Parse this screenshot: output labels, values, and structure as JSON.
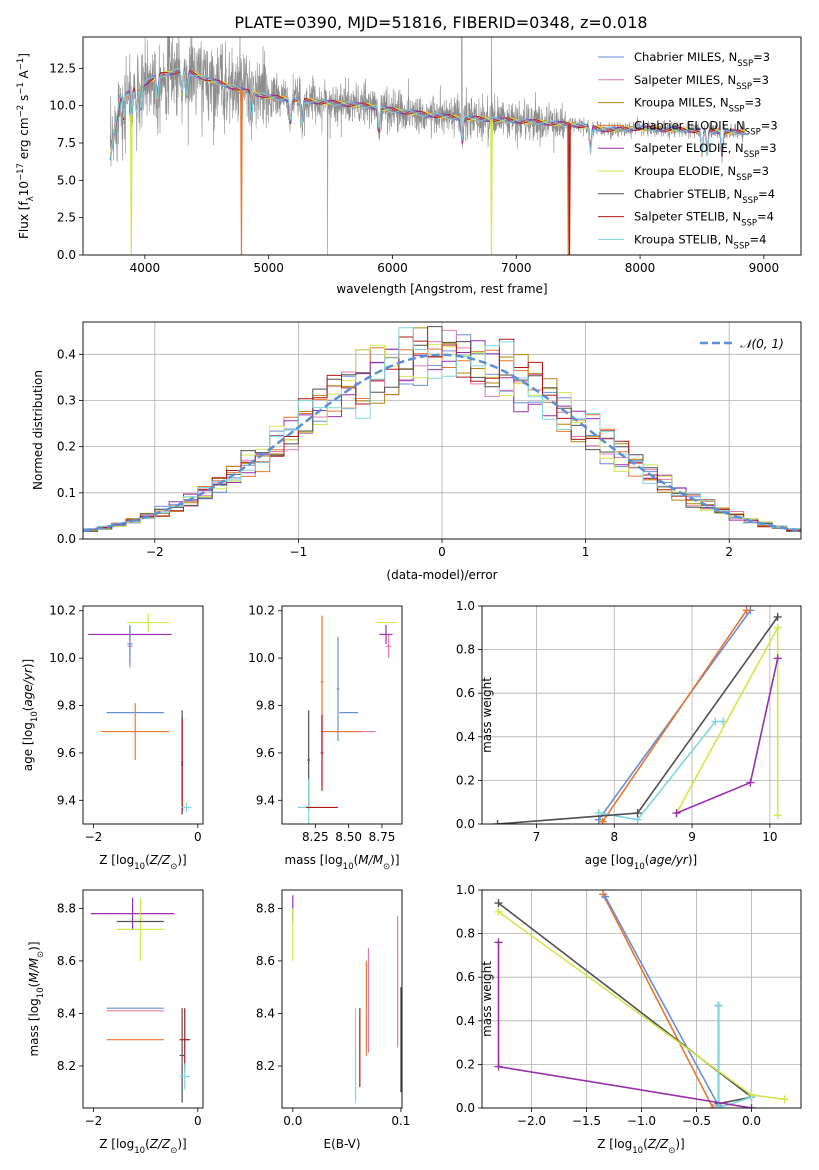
{
  "figure_title": "PLATE=0390, MJD=51816, FIBERID=0348, z=0.018",
  "colors": {
    "Chabrier MILES": "#6a8fd8",
    "Salpeter MILES": "#e27ab2",
    "Kroupa MILES": "#b5860b",
    "Chabrier ELODIE": "#e8772e",
    "Salpeter ELODIE": "#9a2fb0",
    "Kroupa ELODIE": "#cfe84a",
    "Chabrier STELIB": "#505050",
    "Salpeter STELIB": "#b01818",
    "Kroupa STELIB": "#7fd6dc",
    "gaussian": "#5b8fd6",
    "data": "#8c8c8c",
    "grid": "#b0b0b0"
  },
  "chart_data": [
    {
      "id": "spectrum",
      "type": "line",
      "title": "PLATE=0390, MJD=51816, FIBERID=0348, z=0.018",
      "xlabel": "wavelength [Angstrom, rest frame]",
      "ylabel_parts": [
        "Flux [f",
        "λ",
        "10",
        "−17",
        " erg cm",
        "−2",
        " s",
        "−1",
        " A",
        "−1",
        "]"
      ],
      "xlim": [
        3500,
        9300
      ],
      "ylim": [
        0,
        14.6
      ],
      "xticks": [
        4000,
        5000,
        6000,
        7000,
        8000,
        9000
      ],
      "yticks": [
        0.0,
        2.5,
        5.0,
        7.5,
        10.0,
        12.5
      ],
      "ytick_labels": [
        "0.0",
        "2.5",
        "5.0",
        "7.5",
        "10.0",
        "12.5"
      ],
      "legend": {
        "placement": "upper right",
        "entries": [
          {
            "base": "Chabrier MILES, N",
            "sub": "SSP",
            "tail": "=3"
          },
          {
            "base": "Salpeter MILES, N",
            "sub": "SSP",
            "tail": "=3"
          },
          {
            "base": "Kroupa MILES, N",
            "sub": "SSP",
            "tail": "=3"
          },
          {
            "base": "Chabrier ELODIE, N",
            "sub": "SSP",
            "tail": "=3"
          },
          {
            "base": "Salpeter ELODIE, N",
            "sub": "SSP",
            "tail": "=3"
          },
          {
            "base": "Kroupa ELODIE, N",
            "sub": "SSP",
            "tail": "=3"
          },
          {
            "base": "Chabrier STELIB, N",
            "sub": "SSP",
            "tail": "=4"
          },
          {
            "base": "Salpeter STELIB, N",
            "sub": "SSP",
            "tail": "=4"
          },
          {
            "base": "Kroupa STELIB, N",
            "sub": "SSP",
            "tail": "=4"
          }
        ]
      },
      "continuum_x": [
        3720,
        3800,
        3900,
        4000,
        4100,
        4300,
        4500,
        4800,
        5000,
        5200,
        5500,
        5800,
        6000,
        6200,
        6500,
        7000,
        7500,
        7700,
        7800,
        8000,
        8300,
        8600,
        8850
      ],
      "continuum_y": [
        6.5,
        10.5,
        11.0,
        11.5,
        12.0,
        12.4,
        11.8,
        11.0,
        10.6,
        10.4,
        10.2,
        10.0,
        9.7,
        9.5,
        9.2,
        9.0,
        8.7,
        8.4,
        8.4,
        8.5,
        8.4,
        8.3,
        8.2
      ],
      "model_dropouts": [
        {
          "series": "Kroupa ELODIE",
          "x": 3890
        },
        {
          "series": "Chabrier ELODIE",
          "x": 4780
        },
        {
          "series": "Kroupa ELODIE",
          "x": 6800
        },
        {
          "series": "Chabrier ELODIE",
          "x": 7420
        },
        {
          "series": "Salpeter STELIB",
          "x": 7430
        }
      ]
    },
    {
      "id": "residuals",
      "type": "histogram-step",
      "xlabel": "(data-model)/error",
      "ylabel": "Normed distribution",
      "xlim": [
        -2.5,
        2.5
      ],
      "ylim": [
        0,
        0.47
      ],
      "xticks": [
        -2,
        -1,
        0,
        1,
        2
      ],
      "xtick_labels": [
        "−2",
        "−1",
        "0",
        "1",
        "2"
      ],
      "yticks": [
        0.0,
        0.1,
        0.2,
        0.3,
        0.4
      ],
      "ytick_labels": [
        "0.0",
        "0.1",
        "0.2",
        "0.3",
        "0.4"
      ],
      "grid": true,
      "legend": {
        "placement": "upper right",
        "label": "𝒩(0, 1)"
      },
      "bin_width": 0.1,
      "gaussian": {
        "mean": 0,
        "sigma": 1
      }
    },
    {
      "id": "age-vs-Z",
      "type": "errorbar",
      "xlabel": "Z [log10(Z/Z⊙)]",
      "ylabel": "age  [log10(age/yr)]",
      "xlim": [
        -2.2,
        0.1
      ],
      "ylim": [
        9.3,
        10.22
      ],
      "xticks": [
        -2,
        0
      ],
      "xtick_labels": [
        "−2",
        "0"
      ],
      "yticks": [
        9.4,
        9.6,
        9.8,
        10.0,
        10.2
      ],
      "ytick_labels": [
        "9.4",
        "9.6",
        "9.8",
        "10.0",
        "10.2"
      ],
      "points": [
        {
          "series": "Kroupa ELODIE",
          "x": -0.95,
          "xerr": 0.4,
          "y": 10.15,
          "yerr": 0.04
        },
        {
          "series": "Salpeter ELODIE",
          "x": -1.3,
          "xerr": 0.8,
          "y": 10.1,
          "yerr": 0.03
        },
        {
          "series": "Salpeter MILES",
          "x": -1.3,
          "xerr": 0.05,
          "y": 10.05,
          "yerr": 0.09
        },
        {
          "series": "Chabrier MILES",
          "x": -1.3,
          "xerr": 0.05,
          "y": 10.06,
          "yerr": 0.08
        },
        {
          "series": "Chabrier MILES",
          "x": -1.2,
          "xerr": 0.55,
          "y": 9.77,
          "yerr": 0.0
        },
        {
          "series": "Chabrier ELODIE",
          "x": -1.2,
          "xerr": 0.65,
          "y": 9.69,
          "yerr": 0.12
        },
        {
          "series": "Chabrier STELIB",
          "x": -0.3,
          "xerr": 0.02,
          "y": 9.56,
          "yerr": 0.22
        },
        {
          "series": "Salpeter STELIB",
          "x": -0.3,
          "xerr": 0.02,
          "y": 9.55,
          "yerr": 0.2
        },
        {
          "series": "Kroupa STELIB",
          "x": -0.22,
          "xerr": 0.1,
          "y": 9.37,
          "yerr": 0.02
        }
      ]
    },
    {
      "id": "age-vs-mass",
      "type": "errorbar",
      "xlabel": "mass [log10(M/M⊙)]",
      "ylabel": "",
      "xlim": [
        8.0,
        8.9
      ],
      "ylim": [
        9.3,
        10.22
      ],
      "xticks": [
        8.25,
        8.5,
        8.75
      ],
      "xtick_labels": [
        "8.25",
        "8.50",
        "8.75"
      ],
      "yticks": [
        9.4,
        9.6,
        9.8,
        10.0,
        10.2
      ],
      "ytick_labels": [
        "9.4",
        "9.6",
        "9.8",
        "10.0",
        "10.2"
      ],
      "points": [
        {
          "series": "Kroupa ELODIE",
          "x": 8.78,
          "xerr": 0.08,
          "y": 10.15,
          "yerr": 0.0
        },
        {
          "series": "Salpeter ELODIE",
          "x": 8.78,
          "xerr": 0.05,
          "y": 10.1,
          "yerr": 0.04
        },
        {
          "series": "Salpeter MILES",
          "x": 8.8,
          "xerr": 0.02,
          "y": 10.05,
          "yerr": 0.05
        },
        {
          "series": "Chabrier ELODIE",
          "x": 8.3,
          "xerr": 0.01,
          "y": 9.9,
          "yerr": 0.28
        },
        {
          "series": "Chabrier MILES",
          "x": 8.42,
          "xerr": 0.01,
          "y": 9.87,
          "yerr": 0.22
        },
        {
          "series": "Chabrier MILES",
          "x": 8.5,
          "xerr": 0.07,
          "y": 9.77,
          "yerr": 0.0
        },
        {
          "series": "Salpeter MILES",
          "x": 8.55,
          "xerr": 0.15,
          "y": 9.69,
          "yerr": 0.0
        },
        {
          "series": "Chabrier ELODIE",
          "x": 8.45,
          "xerr": 0.15,
          "y": 9.69,
          "yerr": 0.0
        },
        {
          "series": "Salpeter STELIB",
          "x": 8.3,
          "xerr": 0.01,
          "y": 9.6,
          "yerr": 0.16
        },
        {
          "series": "Chabrier STELIB",
          "x": 8.2,
          "xerr": 0.01,
          "y": 9.57,
          "yerr": 0.21
        },
        {
          "series": "Kroupa STELIB",
          "x": 8.2,
          "xerr": 0.08,
          "y": 9.37,
          "yerr": 0.12
        },
        {
          "series": "Salpeter STELIB",
          "x": 8.3,
          "xerr": 0.12,
          "y": 9.37,
          "yerr": 0.0
        }
      ]
    },
    {
      "id": "massweight-vs-age",
      "type": "line",
      "xlabel": "age  [log10(age/yr)]",
      "ylabel": "mass weight",
      "xlim": [
        6.3,
        10.4
      ],
      "ylim": [
        0,
        1.0
      ],
      "xticks": [
        7,
        8,
        9,
        10
      ],
      "xtick_labels": [
        "7",
        "8",
        "9",
        "10"
      ],
      "yticks": [
        0.0,
        0.2,
        0.4,
        0.6,
        0.8,
        1.0
      ],
      "ytick_labels": [
        "0.0",
        "0.2",
        "0.4",
        "0.6",
        "0.8",
        "1.0"
      ],
      "grid": true,
      "series": [
        {
          "name": "Chabrier MILES",
          "x": [
            7.8,
            9.75
          ],
          "y": [
            0.02,
            0.98
          ]
        },
        {
          "name": "Chabrier ELODIE",
          "x": [
            7.85,
            9.7
          ],
          "y": [
            0.01,
            0.98
          ]
        },
        {
          "name": "Kroupa STELIB",
          "x": [
            7.8,
            8.3,
            9.3,
            9.4
          ],
          "y": [
            0.05,
            0.02,
            0.47,
            0.47
          ]
        },
        {
          "name": "Chabrier STELIB",
          "x": [
            6.5,
            8.3,
            10.1
          ],
          "y": [
            0.0,
            0.05,
            0.95
          ]
        },
        {
          "name": "Kroupa ELODIE",
          "x": [
            8.8,
            10.1,
            10.1
          ],
          "y": [
            0.05,
            0.9,
            0.04
          ]
        },
        {
          "name": "Salpeter ELODIE",
          "x": [
            8.8,
            9.75,
            10.1
          ],
          "y": [
            0.05,
            0.19,
            0.76
          ]
        }
      ]
    },
    {
      "id": "mass-vs-Z",
      "type": "errorbar",
      "xlabel": "Z [log10(Z/Z⊙)]",
      "ylabel": "mass [log10(M/M⊙)]",
      "xlim": [
        -2.2,
        0.1
      ],
      "ylim": [
        8.04,
        8.87
      ],
      "xticks": [
        -2,
        0
      ],
      "xtick_labels": [
        "−2",
        "0"
      ],
      "yticks": [
        8.2,
        8.4,
        8.6,
        8.8
      ],
      "ytick_labels": [
        "8.2",
        "8.4",
        "8.6",
        "8.8"
      ],
      "points": [
        {
          "series": "Salpeter ELODIE",
          "x": -1.25,
          "xerr": 0.8,
          "y": 8.78,
          "yerr": 0.06
        },
        {
          "series": "Kroupa ELODIE",
          "x": -1.1,
          "xerr": 0.45,
          "y": 8.72,
          "yerr": 0.12
        },
        {
          "series": "Chabrier STELIB",
          "x": -1.1,
          "xerr": 0.45,
          "y": 8.75,
          "yerr": 0.0
        },
        {
          "series": "Salpeter MILES",
          "x": -1.2,
          "xerr": 0.55,
          "y": 8.41,
          "yerr": 0.0
        },
        {
          "series": "Chabrier MILES",
          "x": -1.2,
          "xerr": 0.55,
          "y": 8.42,
          "yerr": 0.0
        },
        {
          "series": "Chabrier ELODIE",
          "x": -1.2,
          "xerr": 0.55,
          "y": 8.3,
          "yerr": 0.0
        },
        {
          "series": "Salpeter STELIB",
          "x": -0.25,
          "xerr": 0.1,
          "y": 8.3,
          "yerr": 0.12
        },
        {
          "series": "Chabrier STELIB",
          "x": -0.3,
          "xerr": 0.05,
          "y": 8.24,
          "yerr": 0.18
        },
        {
          "series": "Kroupa STELIB",
          "x": -0.25,
          "xerr": 0.1,
          "y": 8.16,
          "yerr": 0.05
        }
      ]
    },
    {
      "id": "mass-vs-EBV",
      "type": "errorbar",
      "xlabel": "E(B-V)",
      "ylabel": "",
      "xlim": [
        -0.01,
        0.101
      ],
      "ylim": [
        8.04,
        8.87
      ],
      "xticks": [
        0.0,
        0.1
      ],
      "xtick_labels": [
        "0.0",
        "0.1"
      ],
      "yticks": [
        8.2,
        8.4,
        8.6,
        8.8
      ],
      "ytick_labels": [
        "8.2",
        "8.4",
        "8.6",
        "8.8"
      ],
      "points": [
        {
          "series": "Salpeter ELODIE",
          "x": 0.0,
          "xerr": 0.0,
          "y": 8.8,
          "yerr": 0.05
        },
        {
          "series": "Kroupa ELODIE",
          "x": 0.0,
          "xerr": 0.0,
          "y": 8.7,
          "yerr": 0.1
        },
        {
          "series": "Kroupa STELIB",
          "x": 0.058,
          "xerr": 0.0,
          "y": 8.24,
          "yerr": 0.18
        },
        {
          "series": "Salpeter STELIB",
          "x": 0.062,
          "xerr": 0.0,
          "y": 8.27,
          "yerr": 0.15
        },
        {
          "series": "Salpeter MILES",
          "x": 0.07,
          "xerr": 0.0,
          "y": 8.45,
          "yerr": 0.2
        },
        {
          "series": "Chabrier ELODIE",
          "x": 0.068,
          "xerr": 0.0,
          "y": 8.42,
          "yerr": 0.18
        },
        {
          "series": "Salpeter MILES",
          "x": 0.097,
          "xerr": 0.0,
          "y": 8.52,
          "yerr": 0.25
        },
        {
          "series": "Chabrier STELIB",
          "x": 0.1,
          "xerr": 0.0,
          "y": 8.3,
          "yerr": 0.2
        }
      ]
    },
    {
      "id": "massweight-vs-Z",
      "type": "line",
      "xlabel": "Z [log10(Z/Z⊙)]",
      "ylabel": "mass weight",
      "xlim": [
        -2.45,
        0.45
      ],
      "ylim": [
        0,
        1.0
      ],
      "xticks": [
        -2.0,
        -1.5,
        -1.0,
        -0.5,
        0.0
      ],
      "xtick_labels": [
        "−2.0",
        "−1.5",
        "−1.0",
        "−0.5",
        "0.0"
      ],
      "yticks": [
        0.0,
        0.2,
        0.4,
        0.6,
        0.8,
        1.0
      ],
      "ytick_labels": [
        "0.0",
        "0.2",
        "0.4",
        "0.6",
        "0.8",
        "1.0"
      ],
      "grid": true,
      "series": [
        {
          "name": "Chabrier ELODIE",
          "x": [
            -1.35,
            -0.35
          ],
          "y": [
            0.98,
            0.0
          ]
        },
        {
          "name": "Chabrier MILES",
          "x": [
            -1.33,
            -0.3
          ],
          "y": [
            0.97,
            0.01
          ]
        },
        {
          "name": "Chabrier STELIB",
          "x": [
            -2.3,
            0.0,
            -0.3,
            -0.3
          ],
          "y": [
            0.94,
            0.05,
            0.02,
            0.47
          ]
        },
        {
          "name": "Kroupa STELIB",
          "x": [
            -0.3,
            -0.3,
            0.0
          ],
          "y": [
            0.47,
            0.0,
            0.05
          ]
        },
        {
          "name": "Kroupa ELODIE",
          "x": [
            -2.3,
            0.0,
            0.3
          ],
          "y": [
            0.9,
            0.06,
            0.04
          ]
        },
        {
          "name": "Salpeter ELODIE",
          "x": [
            -2.3,
            -2.3,
            0.0
          ],
          "y": [
            0.76,
            0.19,
            0.0
          ]
        }
      ]
    }
  ]
}
